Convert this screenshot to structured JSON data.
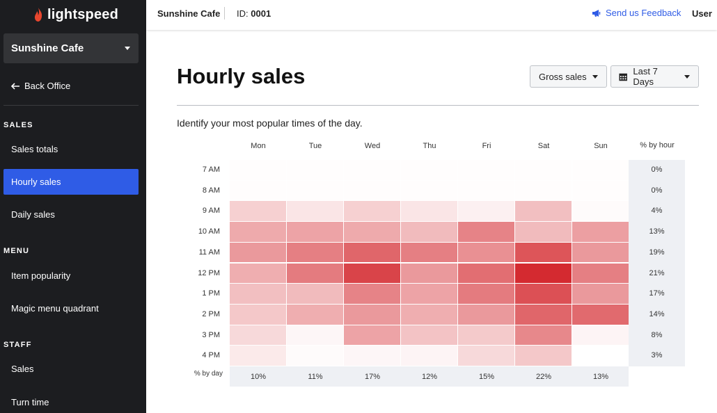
{
  "brand": {
    "name": "lightspeed",
    "accent": "#e8462e"
  },
  "sidebar": {
    "store": "Sunshine Cafe",
    "back": "Back Office",
    "sections": [
      {
        "label": "SALES",
        "items": [
          "Sales totals",
          "Hourly sales",
          "Daily sales"
        ]
      },
      {
        "label": "MENU",
        "items": [
          "Item popularity",
          "Magic menu quadrant"
        ]
      },
      {
        "label": "STAFF",
        "items": [
          "Sales",
          "Turn time"
        ]
      }
    ],
    "active": "Hourly sales"
  },
  "header": {
    "store": "Sunshine Cafe",
    "id_label": "ID:",
    "id_value": "0001",
    "feedback": "Send us Feedback",
    "user": "User"
  },
  "page": {
    "title": "Hourly sales",
    "metric": "Gross sales",
    "range": "Last 7 Days",
    "subtitle": "Identify your most popular times of the day."
  },
  "chart_data": {
    "type": "heatmap",
    "days": [
      "Mon",
      "Tue",
      "Wed",
      "Thu",
      "Fri",
      "Sat",
      "Sun"
    ],
    "hours": [
      "7 AM",
      "8 AM",
      "9 AM",
      "10 AM",
      "11 AM",
      "12 PM",
      "1 PM",
      "2 PM",
      "3 PM",
      "4 PM"
    ],
    "intensity": [
      [
        0.01,
        0.01,
        0.01,
        0.01,
        0.01,
        0.01,
        0.01
      ],
      [
        0.01,
        0.01,
        0.01,
        0.01,
        0.01,
        0.01,
        0.01
      ],
      [
        0.22,
        0.12,
        0.22,
        0.12,
        0.07,
        0.3,
        0.02
      ],
      [
        0.4,
        0.43,
        0.4,
        0.32,
        0.58,
        0.32,
        0.45
      ],
      [
        0.48,
        0.6,
        0.72,
        0.6,
        0.52,
        0.8,
        0.48
      ],
      [
        0.38,
        0.62,
        0.88,
        0.48,
        0.68,
        1.0,
        0.6
      ],
      [
        0.3,
        0.32,
        0.58,
        0.43,
        0.62,
        0.82,
        0.48
      ],
      [
        0.26,
        0.38,
        0.48,
        0.38,
        0.48,
        0.72,
        0.7
      ],
      [
        0.18,
        0.04,
        0.43,
        0.28,
        0.25,
        0.56,
        0.05
      ],
      [
        0.1,
        0.02,
        0.04,
        0.05,
        0.18,
        0.26,
        0.0
      ]
    ],
    "pct_by_hour_label": "% by hour",
    "pct_by_hour": [
      "0%",
      "0%",
      "4%",
      "13%",
      "19%",
      "21%",
      "17%",
      "14%",
      "8%",
      "3%"
    ],
    "pct_by_day_label": "% by day",
    "pct_by_day": [
      "10%",
      "11%",
      "17%",
      "12%",
      "15%",
      "22%",
      "13%"
    ],
    "color_high": "#d42a30"
  }
}
